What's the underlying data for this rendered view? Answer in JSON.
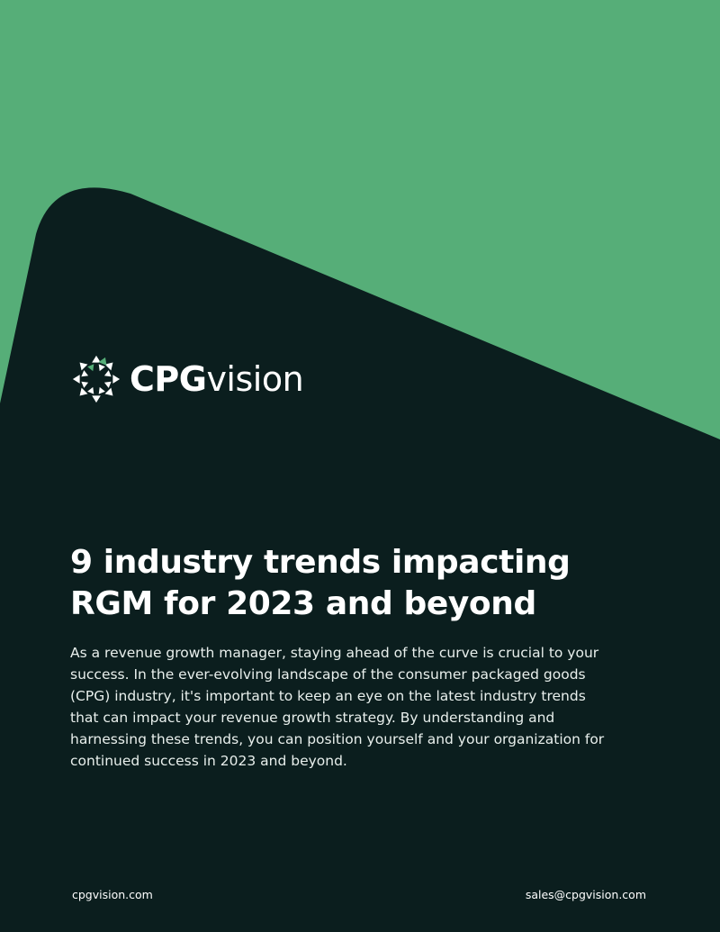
{
  "colors": {
    "green": "#56ae78",
    "dark": "#0b1e1e",
    "text": "#ffffff",
    "logo_accent": "#56ae78"
  },
  "logo": {
    "icon": "cpgvision-geometric-logo-icon",
    "brand_bold": "CPG",
    "brand_light": "vision"
  },
  "title": "9 industry trends impacting RGM for 2023 and beyond",
  "intro": "As a revenue growth manager, staying ahead of the curve is crucial to your success. In the ever-evolving landscape of the consumer packaged goods (CPG) industry, it's important to keep an eye on the latest industry trends that can impact your revenue growth strategy. By understanding and harnessing these trends, you can position yourself and your organization for continued success in 2023 and beyond.",
  "footer": {
    "website": "cpgvision.com",
    "email": "sales@cpgvision.com"
  }
}
